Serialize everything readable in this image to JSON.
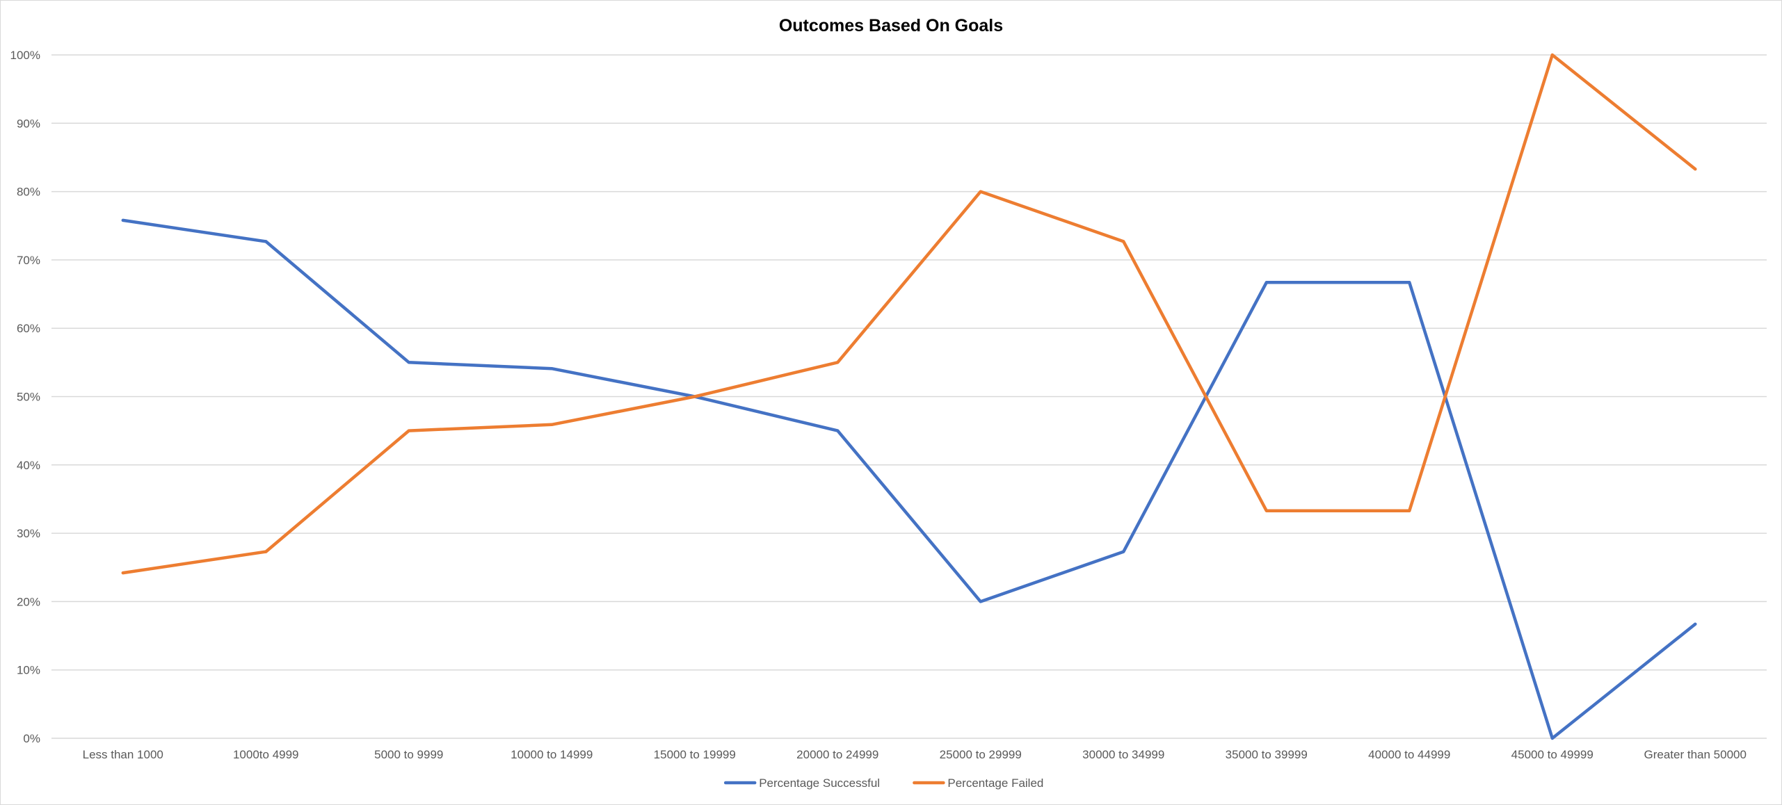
{
  "chart_data": {
    "type": "line",
    "title": "Outcomes Based On Goals",
    "xlabel": "",
    "ylabel": "",
    "ylim": [
      0,
      1
    ],
    "y_ticks": [
      {
        "value": 0,
        "label": "0%"
      },
      {
        "value": 0.1,
        "label": "10%"
      },
      {
        "value": 0.2,
        "label": "20%"
      },
      {
        "value": 0.3,
        "label": "30%"
      },
      {
        "value": 0.4,
        "label": "40%"
      },
      {
        "value": 0.5,
        "label": "50%"
      },
      {
        "value": 0.6,
        "label": "60%"
      },
      {
        "value": 0.7,
        "label": "70%"
      },
      {
        "value": 0.8,
        "label": "80%"
      },
      {
        "value": 0.9,
        "label": "90%"
      },
      {
        "value": 1,
        "label": "100%"
      }
    ],
    "categories": [
      "Less than 1000",
      "1000to 4999",
      "5000 to 9999",
      "10000 to 14999",
      "15000 to 19999",
      "20000 to 24999",
      "25000 to 29999",
      "30000 to 34999",
      "35000 to 39999",
      "40000 to 44999",
      "45000 to 49999",
      "Greater than 50000"
    ],
    "series": [
      {
        "name": "Percentage Successful",
        "color": "#4472C4",
        "values": [
          0.758,
          0.727,
          0.55,
          0.541,
          0.5,
          0.45,
          0.2,
          0.273,
          0.667,
          0.667,
          0.0,
          0.167
        ]
      },
      {
        "name": "Percentage Failed",
        "color": "#ED7D31",
        "values": [
          0.242,
          0.273,
          0.45,
          0.459,
          0.5,
          0.55,
          0.8,
          0.727,
          0.333,
          0.333,
          1.0,
          0.833
        ]
      }
    ],
    "grid": true,
    "gridline_color": "#d9d9d9",
    "legend_position": "bottom"
  }
}
